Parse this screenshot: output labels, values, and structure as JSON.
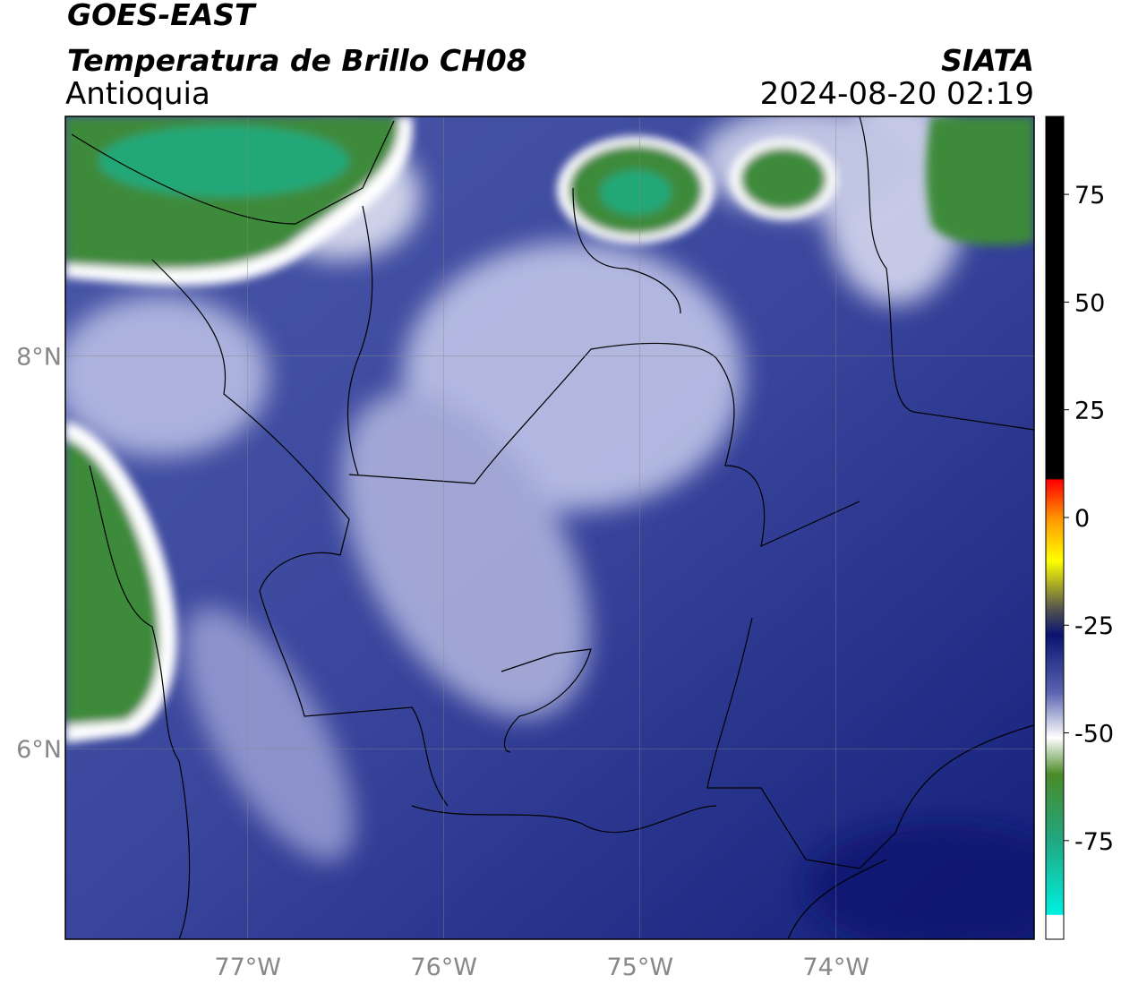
{
  "header": {
    "satellite": "GOES-EAST",
    "product": "Temperatura de Brillo CH08",
    "region": "Antioquia",
    "agency": "SIATA",
    "datetime": "2024-08-20 02:19"
  },
  "map": {
    "xlim": [
      -77.93,
      -72.99
    ],
    "ylim": [
      5.03,
      9.22
    ],
    "xticks": [
      {
        "value": -77,
        "label": "77°W"
      },
      {
        "value": -76,
        "label": "76°W"
      },
      {
        "value": -75,
        "label": "75°W"
      },
      {
        "value": -74,
        "label": "74°W"
      }
    ],
    "yticks": [
      {
        "value": 8,
        "label": "8°N"
      },
      {
        "value": 6,
        "label": "6°N"
      }
    ],
    "grid": true
  },
  "colorbar": {
    "lim": [
      -97.9,
      93.1
    ],
    "ticks": [
      75,
      50,
      25,
      0,
      -25,
      -50,
      -75
    ]
  }
}
